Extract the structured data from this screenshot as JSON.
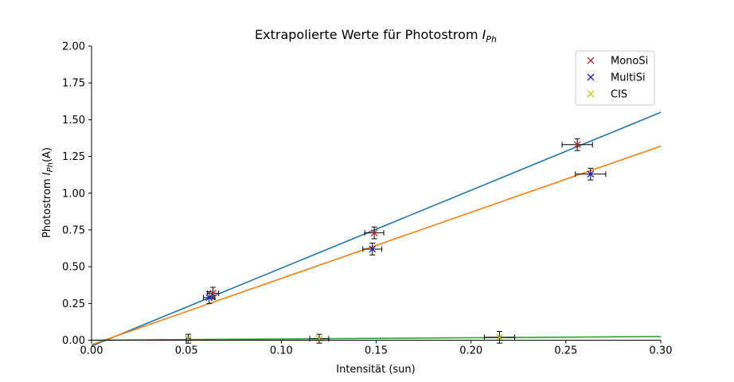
{
  "chart_data": {
    "type": "scatter",
    "title": "Extrapolierte Werte für Photostrom",
    "title_symbol": "I",
    "title_subscript": "Ph",
    "xlabel": "Intensität (sun)",
    "ylabel": "Photostrom",
    "ylabel_symbol": "I",
    "ylabel_subscript": "Ph",
    "ylabel_unit": "(A)",
    "xlim": [
      0.0,
      0.3
    ],
    "ylim": [
      0.0,
      2.0
    ],
    "xticks": [
      "0.00",
      "0.05",
      "0.10",
      "0.15",
      "0.20",
      "0.25",
      "0.30"
    ],
    "yticks": [
      "0.00",
      "0.25",
      "0.50",
      "0.75",
      "1.00",
      "1.25",
      "1.50",
      "1.75",
      "2.00"
    ],
    "grid": false,
    "legend_position": "top-right",
    "series": [
      {
        "name": "MonoSi",
        "marker": "x",
        "color": "#d62728",
        "points": [
          {
            "x": 0.064,
            "y": 0.32,
            "xerr": 0.003,
            "yerr": 0.04
          },
          {
            "x": 0.149,
            "y": 0.73,
            "xerr": 0.005,
            "yerr": 0.04
          },
          {
            "x": 0.256,
            "y": 1.33,
            "xerr": 0.008,
            "yerr": 0.04
          }
        ],
        "fit": {
          "color": "#1f77b4",
          "x": [
            0.0,
            0.3
          ],
          "y": [
            -0.04,
            1.55
          ]
        }
      },
      {
        "name": "MultiSi",
        "marker": "x",
        "color": "#1f1fd6",
        "points": [
          {
            "x": 0.062,
            "y": 0.29,
            "xerr": 0.003,
            "yerr": 0.04
          },
          {
            "x": 0.148,
            "y": 0.62,
            "xerr": 0.005,
            "yerr": 0.04
          },
          {
            "x": 0.263,
            "y": 1.13,
            "xerr": 0.008,
            "yerr": 0.04
          }
        ],
        "fit": {
          "color": "#ff7f0e",
          "x": [
            0.0,
            0.3
          ],
          "y": [
            -0.03,
            1.32
          ]
        }
      },
      {
        "name": "CIS",
        "marker": "x",
        "color": "#c8c800",
        "points": [
          {
            "x": 0.051,
            "y": 0.01,
            "xerr": 0.001,
            "yerr": 0.03
          },
          {
            "x": 0.12,
            "y": 0.01,
            "xerr": 0.005,
            "yerr": 0.03
          },
          {
            "x": 0.215,
            "y": 0.02,
            "xerr": 0.008,
            "yerr": 0.04
          }
        ],
        "fit": {
          "color": "#2ca02c",
          "x": [
            0.0,
            0.3
          ],
          "y": [
            0.0,
            0.025
          ]
        }
      }
    ]
  }
}
